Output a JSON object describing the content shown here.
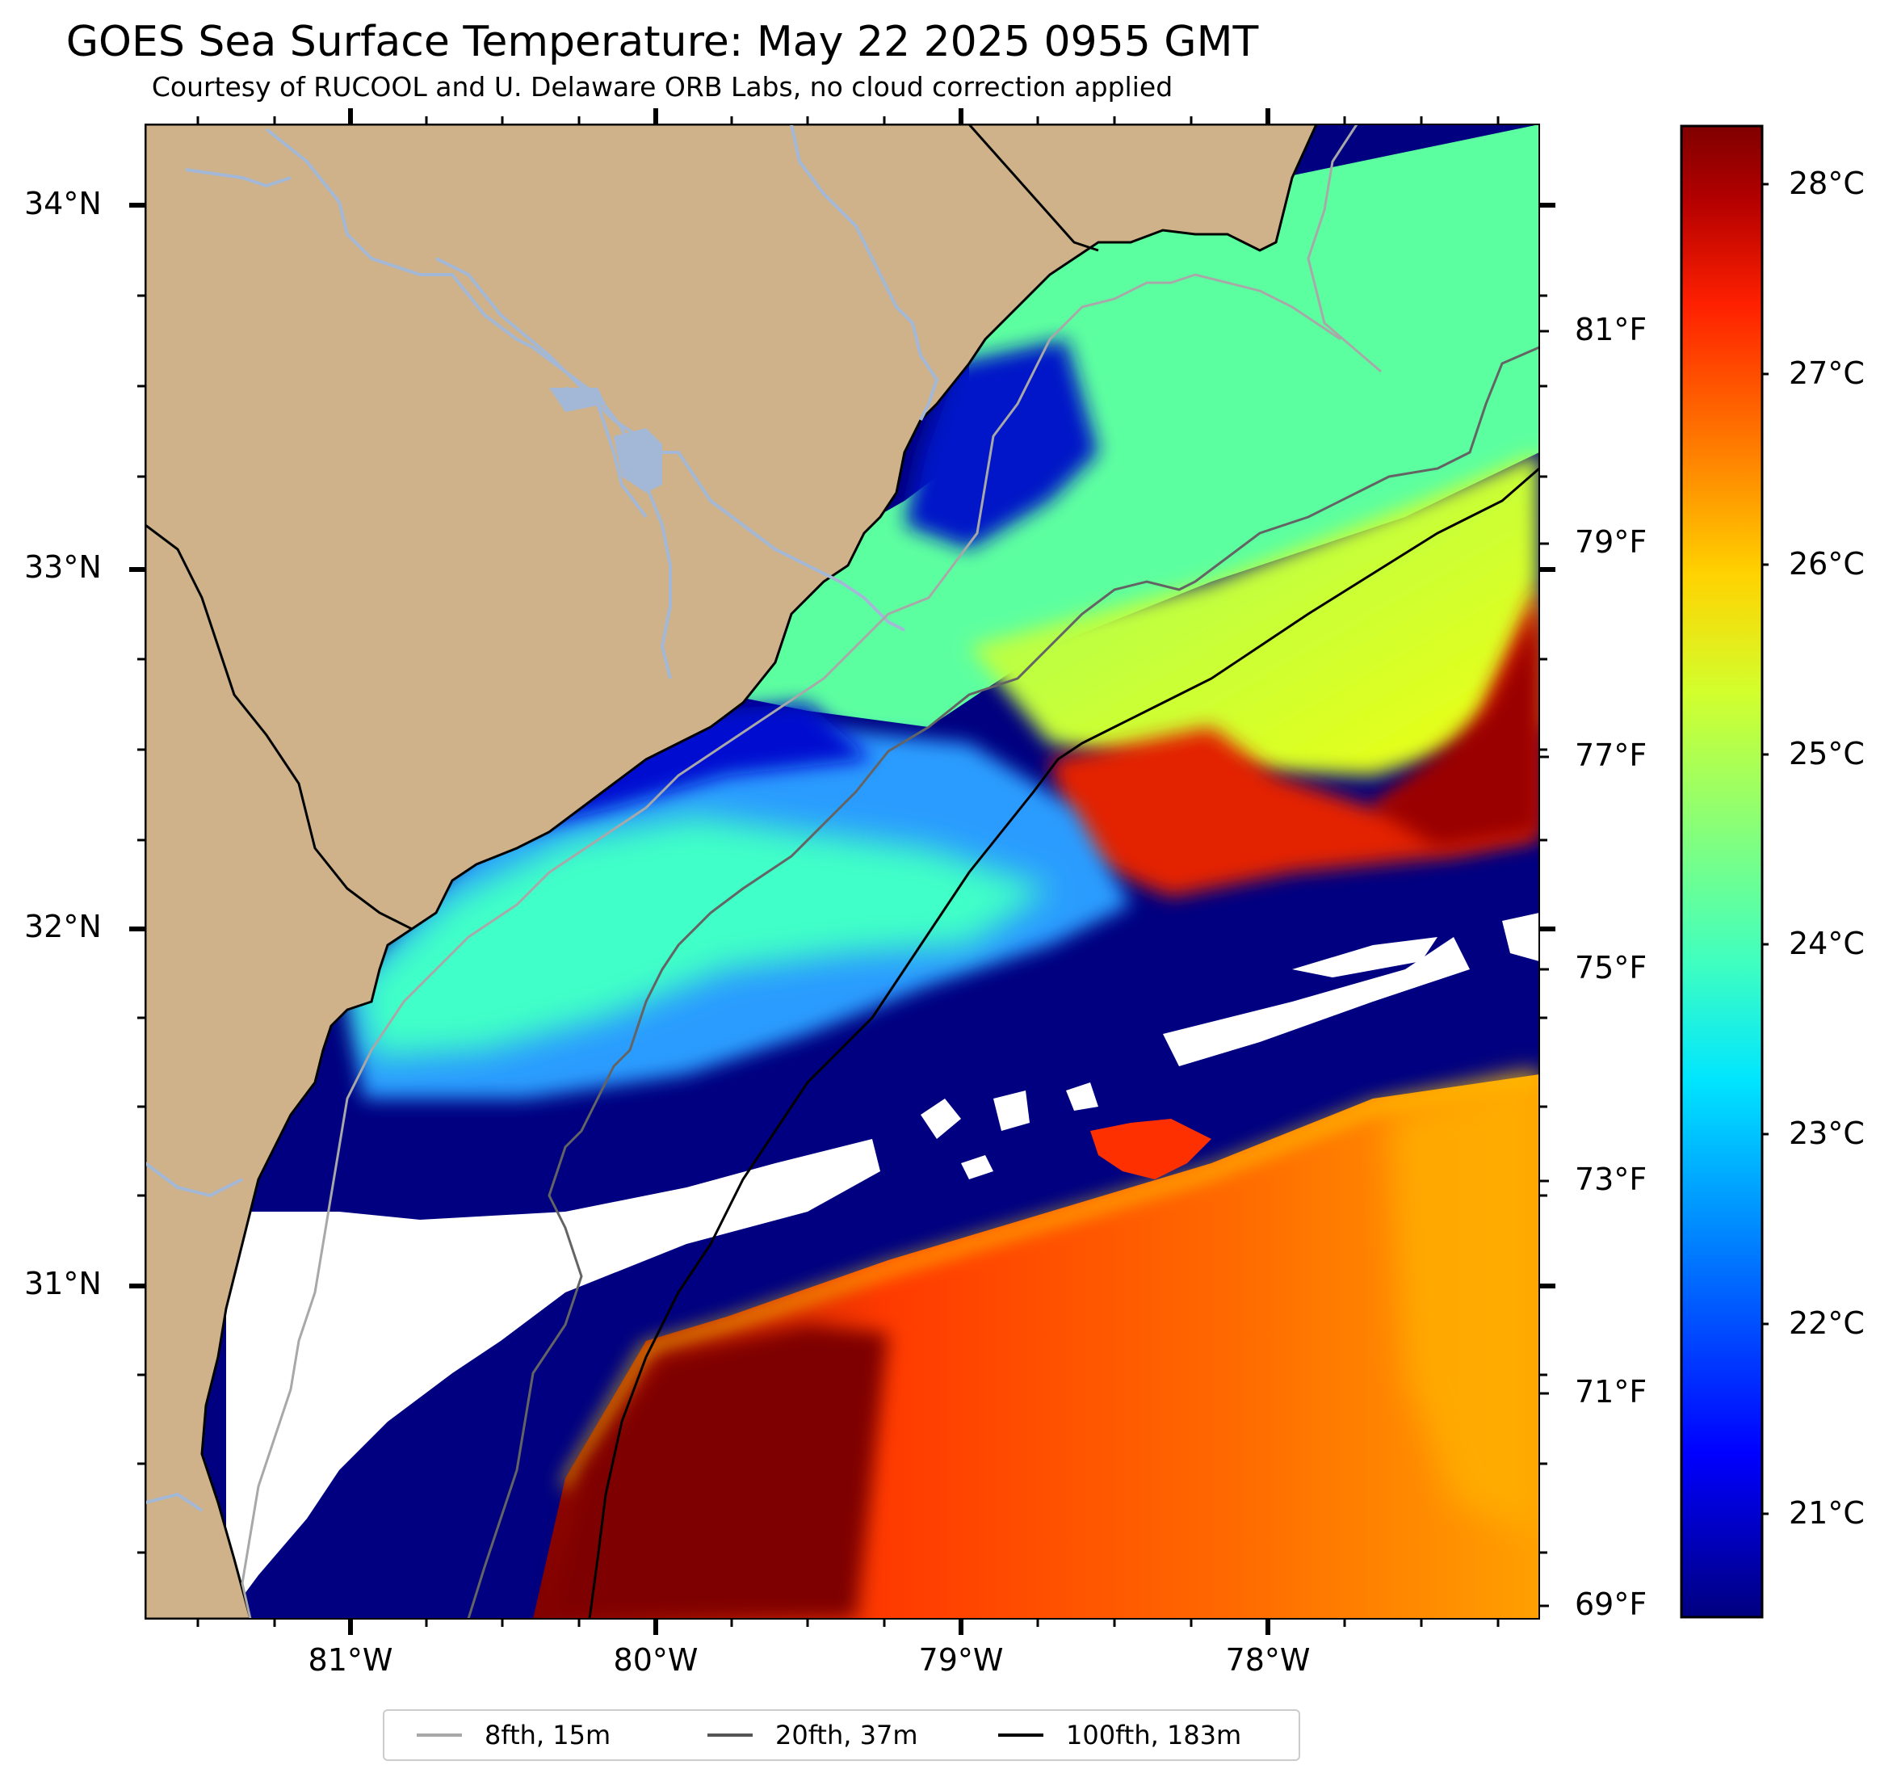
{
  "header": {
    "title": "GOES Sea Surface Temperature: May 22 2025 0955 GMT",
    "subtitle": "Courtesy of RUCOOL and U. Delaware ORB Labs, no cloud correction applied"
  },
  "axes": {
    "latitude_ticks": [
      "34°N",
      "33°N",
      "32°N",
      "31°N"
    ],
    "longitude_ticks": [
      "81°W",
      "80°W",
      "79°W",
      "78°W"
    ],
    "fahrenheit_ticks": [
      "81°F",
      "79°F",
      "77°F",
      "75°F",
      "73°F",
      "71°F",
      "69°F"
    ]
  },
  "colorbar": {
    "ticks": [
      "28°C",
      "27°C",
      "26°C",
      "25°C",
      "24°C",
      "23°C",
      "22°C",
      "21°C"
    ],
    "colors": [
      "#000080",
      "#0000ff",
      "#0080ff",
      "#00e5ff",
      "#40ffbf",
      "#80ff80",
      "#d2ff2d",
      "#ffd200",
      "#ff8000",
      "#ff2000",
      "#b40000",
      "#800000"
    ]
  },
  "legend": {
    "items": [
      {
        "label": "8fth, 15m",
        "color": "#a8a8a8"
      },
      {
        "label": "20fth, 37m",
        "color": "#555555"
      },
      {
        "label": "100fth, 183m",
        "color": "#000000"
      }
    ]
  },
  "map_colors": {
    "land": "#cfb28a",
    "river": "#a3b8d6",
    "no_data": "#ffffff",
    "coastline": "#000000"
  }
}
